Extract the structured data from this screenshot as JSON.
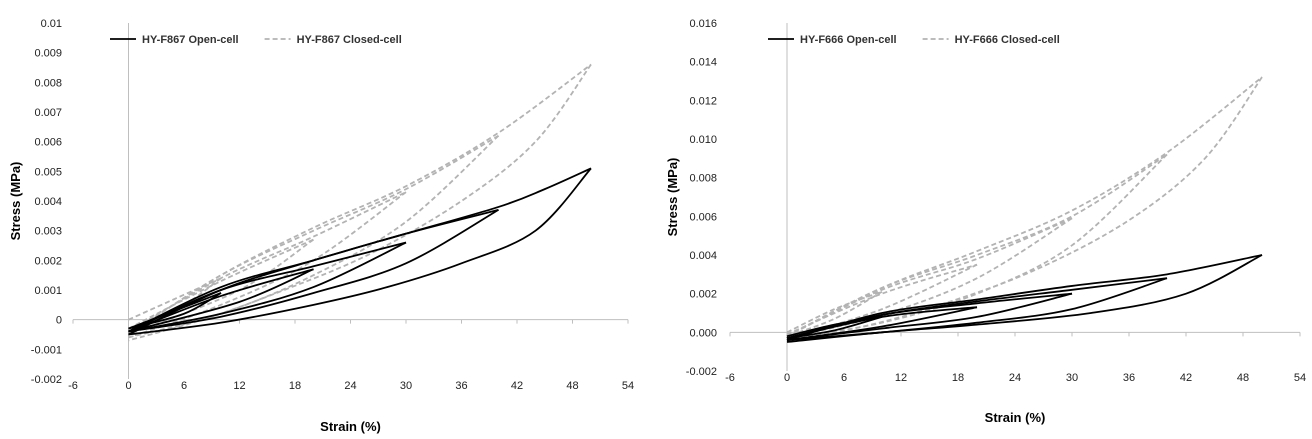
{
  "chart_data": [
    {
      "type": "line",
      "xlabel": "Strain (%)",
      "ylabel": "Stress (MPa)",
      "xlim": [
        -6,
        54
      ],
      "ylim": [
        -0.002,
        0.01
      ],
      "xticks": [
        "-6",
        "0",
        "6",
        "12",
        "18",
        "24",
        "30",
        "36",
        "42",
        "48",
        "54"
      ],
      "xtick_values": [
        -6,
        0,
        6,
        12,
        18,
        24,
        30,
        36,
        42,
        48,
        54
      ],
      "yticks": [
        "-0.002",
        "-0.001",
        "0",
        "0.001",
        "0.002",
        "0.003",
        "0.004",
        "0.005",
        "0.006",
        "0.007",
        "0.008",
        "0.009",
        "0.01"
      ],
      "ytick_values": [
        -0.002,
        -0.001,
        0,
        0.001,
        0.002,
        0.003,
        0.004,
        0.005,
        0.006,
        0.007,
        0.008,
        0.009,
        0.01
      ],
      "grid": false,
      "legend_position": "top-left",
      "series": [
        {
          "name": "HY-F867 Open-cell",
          "style": "solid",
          "color": "#000000",
          "loops": [
            {
              "loading": [
                [
                  0,
                  -0.0003
                ],
                [
                  5,
                  0.0003
                ],
                [
                  10,
                  0.0009
                ]
              ],
              "unloading": [
                [
                  10,
                  0.0009
                ],
                [
                  6,
                  0.0002
                ],
                [
                  0,
                  -0.0003
                ]
              ]
            },
            {
              "loading": [
                [
                  0,
                  -0.0004
                ],
                [
                  10,
                  0.0008
                ],
                [
                  20,
                  0.0017
                ]
              ],
              "unloading": [
                [
                  20,
                  0.0017
                ],
                [
                  12,
                  0.0006
                ],
                [
                  0,
                  -0.0004
                ]
              ]
            },
            {
              "loading": [
                [
                  0,
                  -0.0004
                ],
                [
                  10,
                  0.001
                ],
                [
                  20,
                  0.0018
                ],
                [
                  30,
                  0.0026
                ]
              ],
              "unloading": [
                [
                  30,
                  0.0026
                ],
                [
                  20,
                  0.0011
                ],
                [
                  10,
                  0.0002
                ],
                [
                  0,
                  -0.0004
                ]
              ]
            },
            {
              "loading": [
                [
                  0,
                  -0.0004
                ],
                [
                  10,
                  0.0011
                ],
                [
                  20,
                  0.002
                ],
                [
                  30,
                  0.0029
                ],
                [
                  40,
                  0.0037
                ]
              ],
              "unloading": [
                [
                  40,
                  0.0037
                ],
                [
                  30,
                  0.0019
                ],
                [
                  20,
                  0.0009
                ],
                [
                  10,
                  0.0001
                ],
                [
                  0,
                  -0.0004
                ]
              ]
            },
            {
              "loading": [
                [
                  0,
                  -0.0005
                ],
                [
                  10,
                  0.001
                ],
                [
                  20,
                  0.002
                ],
                [
                  30,
                  0.0029
                ],
                [
                  40,
                  0.0038
                ],
                [
                  45,
                  0.0044
                ],
                [
                  50,
                  0.0051
                ]
              ],
              "unloading": [
                [
                  50,
                  0.0051
                ],
                [
                  44,
                  0.003
                ],
                [
                  36,
                  0.0019
                ],
                [
                  28,
                  0.0011
                ],
                [
                  20,
                  0.0005
                ],
                [
                  10,
                  -0.0001
                ],
                [
                  0,
                  -0.0005
                ]
              ]
            }
          ]
        },
        {
          "name": "HY-F867 Closed-cell",
          "style": "dashed",
          "color": "#b3b3b3",
          "loops": [
            {
              "loading": [
                [
                  0,
                  0.0
                ],
                [
                  5,
                  0.0007
                ],
                [
                  10,
                  0.0014
                ]
              ],
              "unloading": [
                [
                  10,
                  0.0014
                ],
                [
                  6,
                  0.0005
                ],
                [
                  0,
                  -0.0004
                ]
              ]
            },
            {
              "loading": [
                [
                  0,
                  -0.0003
                ],
                [
                  10,
                  0.0013
                ],
                [
                  20,
                  0.0027
                ]
              ],
              "unloading": [
                [
                  20,
                  0.0027
                ],
                [
                  12,
                  0.001
                ],
                [
                  0,
                  -0.0005
                ]
              ]
            },
            {
              "loading": [
                [
                  0,
                  -0.0004
                ],
                [
                  10,
                  0.0014
                ],
                [
                  20,
                  0.0028
                ],
                [
                  30,
                  0.0043
                ]
              ],
              "unloading": [
                [
                  30,
                  0.0043
                ],
                [
                  20,
                  0.002
                ],
                [
                  10,
                  0.0005
                ],
                [
                  0,
                  -0.0006
                ]
              ]
            },
            {
              "loading": [
                [
                  0,
                  -0.0005
                ],
                [
                  10,
                  0.0015
                ],
                [
                  20,
                  0.003
                ],
                [
                  30,
                  0.0044
                ],
                [
                  40,
                  0.0062
                ]
              ],
              "unloading": [
                [
                  40,
                  0.0062
                ],
                [
                  30,
                  0.0033
                ],
                [
                  20,
                  0.0015
                ],
                [
                  10,
                  0.0002
                ],
                [
                  0,
                  -0.0006
                ]
              ]
            },
            {
              "loading": [
                [
                  0,
                  -0.0005
                ],
                [
                  10,
                  0.0015
                ],
                [
                  20,
                  0.0031
                ],
                [
                  30,
                  0.0045
                ],
                [
                  40,
                  0.0063
                ],
                [
                  50,
                  0.0086
                ]
              ],
              "unloading": [
                [
                  50,
                  0.0086
                ],
                [
                  44,
                  0.006
                ],
                [
                  36,
                  0.004
                ],
                [
                  26,
                  0.0022
                ],
                [
                  16,
                  0.0009
                ],
                [
                  8,
                  0.0
                ],
                [
                  0,
                  -0.0007
                ]
              ]
            }
          ]
        }
      ]
    },
    {
      "type": "line",
      "xlabel": "Strain (%)",
      "ylabel": "Stress (MPa)",
      "xlim": [
        -6,
        54
      ],
      "ylim": [
        -0.002,
        0.016
      ],
      "xticks": [
        "-6",
        "0",
        "6",
        "12",
        "18",
        "24",
        "30",
        "36",
        "42",
        "48",
        "54"
      ],
      "xtick_values": [
        -6,
        0,
        6,
        12,
        18,
        24,
        30,
        36,
        42,
        48,
        54
      ],
      "yticks": [
        "-0.002",
        "0.000",
        "0.002",
        "0.004",
        "0.006",
        "0.008",
        "0.010",
        "0.012",
        "0.014",
        "0.016"
      ],
      "ytick_values": [
        -0.002,
        0.0,
        0.002,
        0.004,
        0.006,
        0.008,
        0.01,
        0.012,
        0.014,
        0.016
      ],
      "grid": false,
      "legend_position": "top-left",
      "series": [
        {
          "name": "HY-F666 Open-cell",
          "style": "solid",
          "color": "#000000",
          "loops": [
            {
              "loading": [
                [
                  0,
                  -0.0002
                ],
                [
                  5,
                  0.0004
                ],
                [
                  10,
                  0.0008
                ]
              ],
              "unloading": [
                [
                  10,
                  0.0008
                ],
                [
                  5,
                  0.0001
                ],
                [
                  0,
                  -0.0003
                ]
              ]
            },
            {
              "loading": [
                [
                  0,
                  -0.0003
                ],
                [
                  10,
                  0.0008
                ],
                [
                  20,
                  0.0013
                ]
              ],
              "unloading": [
                [
                  20,
                  0.0013
                ],
                [
                  10,
                  0.0003
                ],
                [
                  0,
                  -0.0004
                ]
              ]
            },
            {
              "loading": [
                [
                  0,
                  -0.0003
                ],
                [
                  10,
                  0.0009
                ],
                [
                  20,
                  0.0015
                ],
                [
                  30,
                  0.002
                ]
              ],
              "unloading": [
                [
                  30,
                  0.002
                ],
                [
                  20,
                  0.0008
                ],
                [
                  10,
                  0.0002
                ],
                [
                  0,
                  -0.0004
                ]
              ]
            },
            {
              "loading": [
                [
                  0,
                  -0.0003
                ],
                [
                  10,
                  0.0009
                ],
                [
                  20,
                  0.0016
                ],
                [
                  30,
                  0.0022
                ],
                [
                  40,
                  0.0028
                ]
              ],
              "unloading": [
                [
                  40,
                  0.0028
                ],
                [
                  30,
                  0.0012
                ],
                [
                  20,
                  0.0005
                ],
                [
                  10,
                  0.0
                ],
                [
                  0,
                  -0.0004
                ]
              ]
            },
            {
              "loading": [
                [
                  0,
                  -0.0004
                ],
                [
                  10,
                  0.001
                ],
                [
                  20,
                  0.0017
                ],
                [
                  30,
                  0.0024
                ],
                [
                  40,
                  0.003
                ],
                [
                  50,
                  0.004
                ]
              ],
              "unloading": [
                [
                  50,
                  0.004
                ],
                [
                  42,
                  0.002
                ],
                [
                  32,
                  0.001
                ],
                [
                  20,
                  0.0004
                ],
                [
                  10,
                  0.0
                ],
                [
                  0,
                  -0.0005
                ]
              ]
            }
          ]
        },
        {
          "name": "HY-F666 Closed-cell",
          "style": "dashed",
          "color": "#b3b3b3",
          "loops": [
            {
              "loading": [
                [
                  0,
                  0.0
                ],
                [
                  5,
                  0.0012
                ],
                [
                  10,
                  0.0021
                ]
              ],
              "unloading": [
                [
                  10,
                  0.0021
                ],
                [
                  5,
                  0.0007
                ],
                [
                  0,
                  -0.0002
                ]
              ]
            },
            {
              "loading": [
                [
                  0,
                  -0.0001
                ],
                [
                  10,
                  0.002
                ],
                [
                  20,
                  0.0035
                ]
              ],
              "unloading": [
                [
                  20,
                  0.0035
                ],
                [
                  10,
                  0.0012
                ],
                [
                  0,
                  -0.0003
                ]
              ]
            },
            {
              "loading": [
                [
                  0,
                  -0.0002
                ],
                [
                  10,
                  0.0022
                ],
                [
                  20,
                  0.0038
                ],
                [
                  30,
                  0.0059
                ]
              ],
              "unloading": [
                [
                  30,
                  0.0059
                ],
                [
                  20,
                  0.0028
                ],
                [
                  10,
                  0.0009
                ],
                [
                  0,
                  -0.0003
                ]
              ]
            },
            {
              "loading": [
                [
                  0,
                  -0.0002
                ],
                [
                  10,
                  0.0023
                ],
                [
                  20,
                  0.004
                ],
                [
                  30,
                  0.006
                ],
                [
                  40,
                  0.0092
                ]
              ],
              "unloading": [
                [
                  40,
                  0.0092
                ],
                [
                  30,
                  0.0045
                ],
                [
                  20,
                  0.002
                ],
                [
                  10,
                  0.0005
                ],
                [
                  0,
                  -0.0003
                ]
              ]
            },
            {
              "loading": [
                [
                  0,
                  -0.0002
                ],
                [
                  10,
                  0.0023
                ],
                [
                  20,
                  0.0042
                ],
                [
                  30,
                  0.0063
                ],
                [
                  40,
                  0.0093
                ],
                [
                  50,
                  0.0132
                ]
              ],
              "unloading": [
                [
                  50,
                  0.0132
                ],
                [
                  44,
                  0.009
                ],
                [
                  36,
                  0.0058
                ],
                [
                  26,
                  0.0032
                ],
                [
                  16,
                  0.0014
                ],
                [
                  8,
                  0.0003
                ],
                [
                  0,
                  -0.0004
                ]
              ]
            }
          ]
        }
      ]
    }
  ]
}
